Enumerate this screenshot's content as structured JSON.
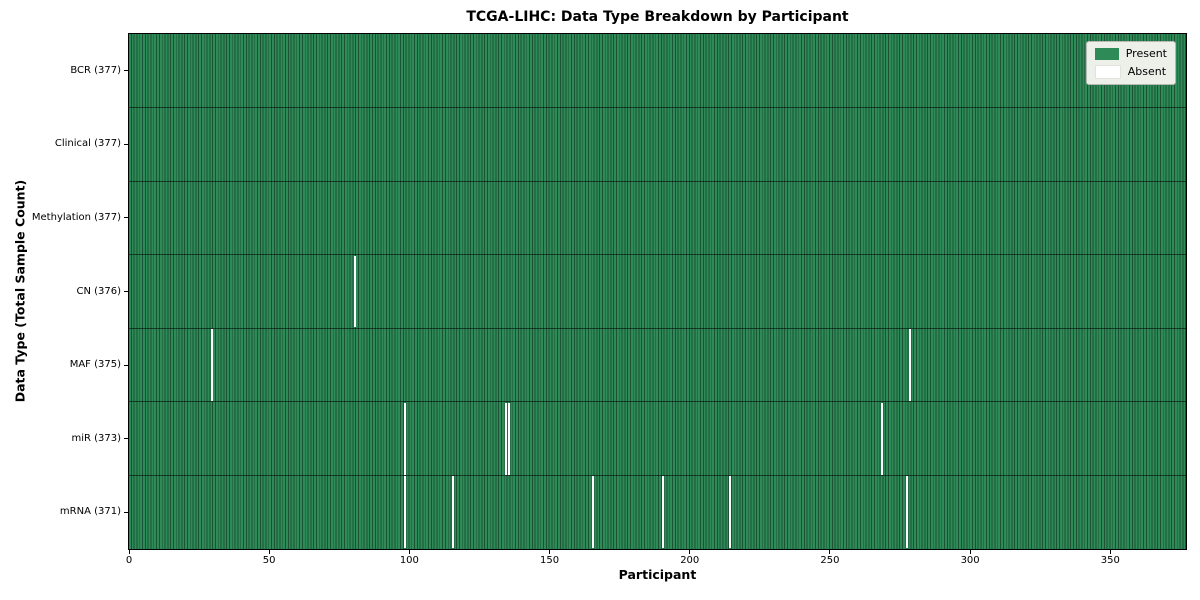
{
  "colors": {
    "present": "#2e8b57",
    "present_edge": "#1c5335",
    "absent": "#ffffff",
    "row_divider": "rgba(0,0,0,0.55)",
    "axis_line": "#000000",
    "legend_bg": "#edf0e9",
    "legend_border": "#b7bab4",
    "absent_swatch_border": "#e2e2de"
  },
  "chart_data": {
    "type": "heatmap",
    "title": "TCGA-LIHC: Data Type Breakdown by Participant",
    "xlabel": "Participant",
    "ylabel": "Data Type (Total Sample Count)",
    "x_range": [
      0,
      377
    ],
    "total_participants": 377,
    "x_ticks": [
      0,
      50,
      100,
      150,
      200,
      250,
      300,
      350
    ],
    "grid": false,
    "legend_position": "upper right",
    "legend": [
      "Present",
      "Absent"
    ],
    "rows": [
      {
        "label": "BCR (377)",
        "data_type": "BCR",
        "present_count": 377,
        "absent_count": 0,
        "absent_participant_indices": []
      },
      {
        "label": "Clinical (377)",
        "data_type": "Clinical",
        "present_count": 377,
        "absent_count": 0,
        "absent_participant_indices": []
      },
      {
        "label": "Methylation (377)",
        "data_type": "Methylation",
        "present_count": 377,
        "absent_count": 0,
        "absent_participant_indices": []
      },
      {
        "label": "CN (376)",
        "data_type": "CN",
        "present_count": 376,
        "absent_count": 1,
        "absent_participant_indices": [
          80
        ]
      },
      {
        "label": "MAF (375)",
        "data_type": "MAF",
        "present_count": 375,
        "absent_count": 2,
        "absent_participant_indices": [
          29,
          278
        ]
      },
      {
        "label": "miR (373)",
        "data_type": "miR",
        "present_count": 373,
        "absent_count": 4,
        "absent_participant_indices": [
          98,
          134,
          135,
          268
        ]
      },
      {
        "label": "mRNA (371)",
        "data_type": "mRNA",
        "present_count": 371,
        "absent_count": 6,
        "absent_participant_indices": [
          98,
          115,
          165,
          190,
          214,
          277
        ]
      }
    ]
  }
}
